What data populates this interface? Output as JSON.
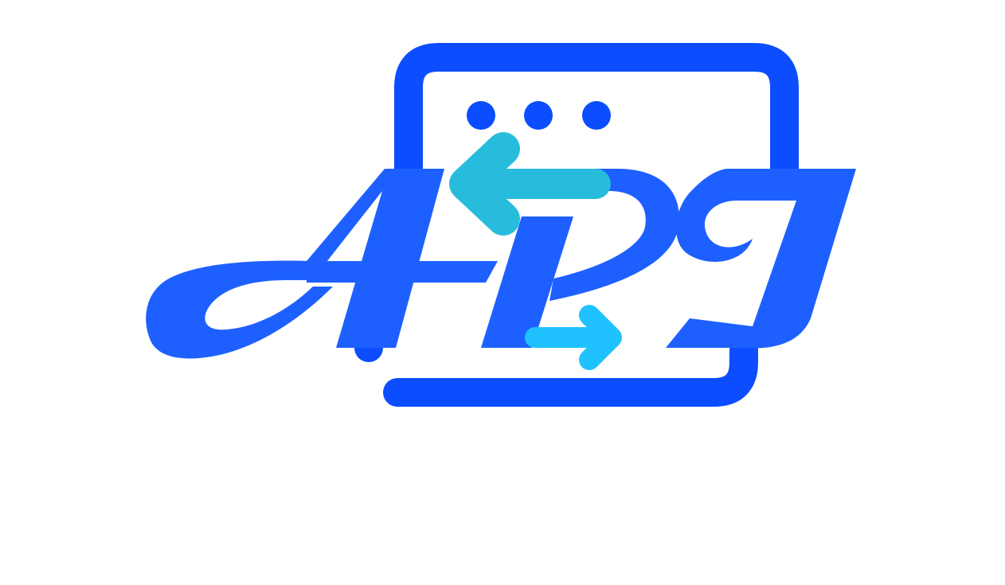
{
  "logo": {
    "lettering": "API",
    "icon": "browser-window-with-exchange-arrows-icon",
    "colors": {
      "window_frame": "#0b4dff",
      "window_dots": "#0b4dff",
      "lettering": "#1e60ff",
      "left_arrow": "#28bcdc",
      "right_arrow": "#1fc2ff",
      "background": "#ffffff"
    }
  }
}
